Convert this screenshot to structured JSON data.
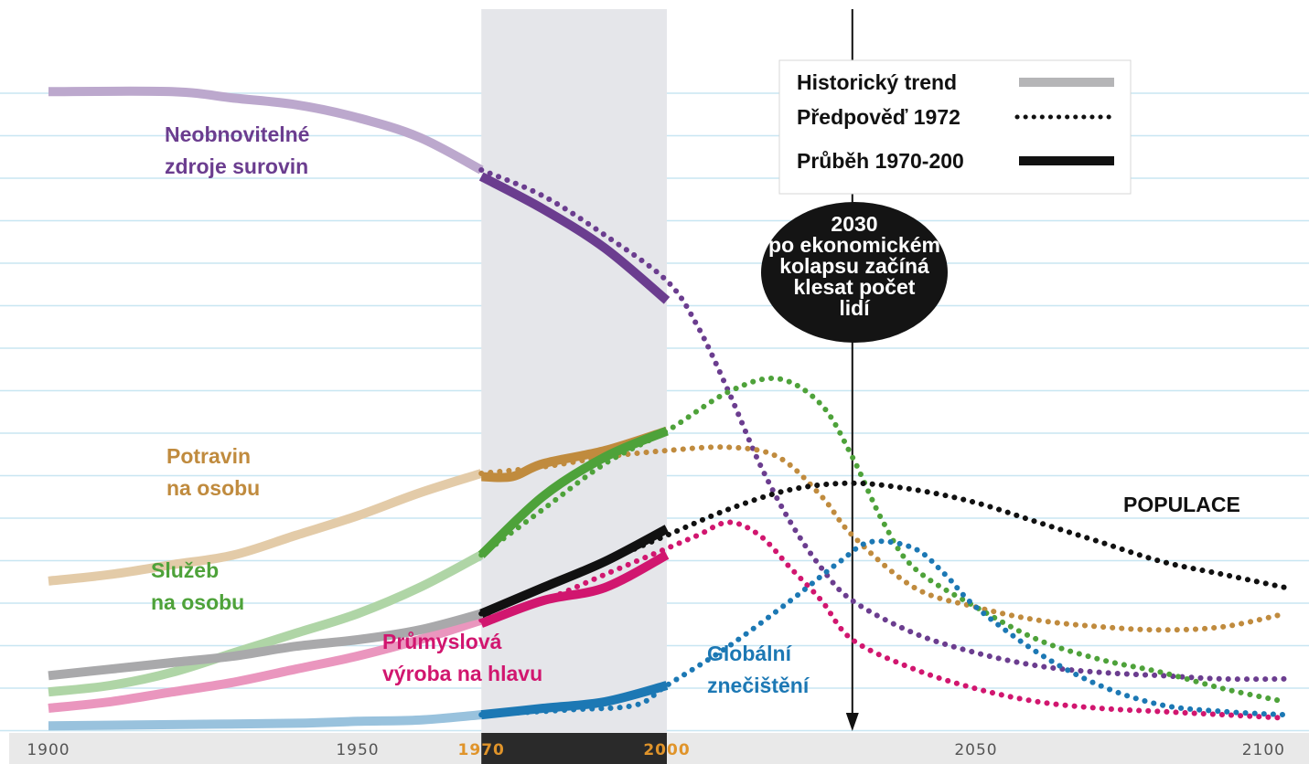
{
  "chart_data": {
    "type": "line",
    "title": "",
    "xlabel": "",
    "ylabel": "",
    "xlim": [
      1900,
      2100
    ],
    "x_ticks": [
      "1900",
      "1950",
      "1970",
      "2000",
      "2050",
      "2100"
    ],
    "highlight_range": [
      1970,
      2000
    ],
    "marker": {
      "year": 2030,
      "text": [
        "2030",
        "po ekonomickém",
        "kolapsu začíná",
        "klesat počet",
        "lidí"
      ]
    },
    "legend": {
      "position": "top-right",
      "items": [
        {
          "label": "Historický trend",
          "style": "historical"
        },
        {
          "label": "Předpověď 1972",
          "style": "dotted"
        },
        {
          "label": "Průběh 1970-200",
          "style": "solid"
        }
      ]
    },
    "colors": {
      "resources": "#6b3d8f",
      "food": "#c08b3e",
      "services": "#4ea23a",
      "industry": "#d1166f",
      "pollution": "#1c78b4",
      "population": "#111111",
      "gridline": "#c8e6f2",
      "highlight": "#e5e6ea",
      "axis_bar": "#2a2a2a",
      "axis_highlight_text": "#e0942a"
    },
    "series": [
      {
        "name": "Neobnovitelné zdroje surovin",
        "label_lines": [
          "Neobnovitelné",
          "zdroje surovin"
        ],
        "color_key": "resources",
        "historical": [
          [
            1900,
            0.98
          ],
          [
            1920,
            0.98
          ],
          [
            1930,
            0.97
          ],
          [
            1940,
            0.96
          ],
          [
            1950,
            0.94
          ],
          [
            1960,
            0.91
          ],
          [
            1970,
            0.86
          ]
        ],
        "forecast": [
          [
            1970,
            0.86
          ],
          [
            1980,
            0.82
          ],
          [
            1990,
            0.76
          ],
          [
            2000,
            0.69
          ],
          [
            2005,
            0.62
          ],
          [
            2010,
            0.52
          ],
          [
            2015,
            0.41
          ],
          [
            2020,
            0.32
          ],
          [
            2025,
            0.25
          ],
          [
            2030,
            0.2
          ],
          [
            2040,
            0.15
          ],
          [
            2050,
            0.12
          ],
          [
            2060,
            0.1
          ],
          [
            2070,
            0.09
          ],
          [
            2080,
            0.085
          ],
          [
            2090,
            0.08
          ],
          [
            2100,
            0.08
          ]
        ],
        "actual": [
          [
            1970,
            0.85
          ],
          [
            1980,
            0.8
          ],
          [
            1990,
            0.74
          ],
          [
            2000,
            0.66
          ]
        ]
      },
      {
        "name": "Potravin na osobu",
        "label_lines": [
          "Potravin",
          "na osobu"
        ],
        "color_key": "food",
        "historical": [
          [
            1900,
            0.23
          ],
          [
            1910,
            0.24
          ],
          [
            1920,
            0.255
          ],
          [
            1930,
            0.27
          ],
          [
            1940,
            0.3
          ],
          [
            1950,
            0.33
          ],
          [
            1960,
            0.365
          ],
          [
            1970,
            0.395
          ]
        ],
        "forecast": [
          [
            1970,
            0.395
          ],
          [
            1980,
            0.405
          ],
          [
            1990,
            0.42
          ],
          [
            2000,
            0.43
          ],
          [
            2010,
            0.435
          ],
          [
            2018,
            0.42
          ],
          [
            2025,
            0.36
          ],
          [
            2030,
            0.3
          ],
          [
            2040,
            0.22
          ],
          [
            2050,
            0.19
          ],
          [
            2060,
            0.17
          ],
          [
            2070,
            0.16
          ],
          [
            2080,
            0.155
          ],
          [
            2090,
            0.16
          ],
          [
            2100,
            0.18
          ]
        ],
        "actual": [
          [
            1970,
            0.39
          ],
          [
            1975,
            0.39
          ],
          [
            1980,
            0.41
          ],
          [
            1990,
            0.43
          ],
          [
            2000,
            0.46
          ]
        ]
      },
      {
        "name": "Služeb na osobu",
        "label_lines": [
          "Služeb",
          "na osobu"
        ],
        "color_key": "services",
        "historical": [
          [
            1900,
            0.06
          ],
          [
            1910,
            0.07
          ],
          [
            1920,
            0.09
          ],
          [
            1930,
            0.12
          ],
          [
            1940,
            0.15
          ],
          [
            1950,
            0.18
          ],
          [
            1960,
            0.22
          ],
          [
            1970,
            0.27
          ]
        ],
        "forecast": [
          [
            1970,
            0.27
          ],
          [
            1980,
            0.34
          ],
          [
            1990,
            0.41
          ],
          [
            2000,
            0.46
          ],
          [
            2010,
            0.52
          ],
          [
            2018,
            0.54
          ],
          [
            2025,
            0.5
          ],
          [
            2030,
            0.42
          ],
          [
            2035,
            0.32
          ],
          [
            2040,
            0.25
          ],
          [
            2050,
            0.19
          ],
          [
            2060,
            0.14
          ],
          [
            2070,
            0.11
          ],
          [
            2080,
            0.09
          ],
          [
            2090,
            0.065
          ],
          [
            2100,
            0.045
          ]
        ],
        "actual": [
          [
            1970,
            0.27
          ],
          [
            1980,
            0.36
          ],
          [
            1990,
            0.42
          ],
          [
            2000,
            0.46
          ]
        ]
      },
      {
        "name": "Průmyslová výroba na hlavu",
        "label_lines": [
          "Průmyslová",
          "výroba na hlavu"
        ],
        "color_key": "industry",
        "historical": [
          [
            1900,
            0.035
          ],
          [
            1910,
            0.045
          ],
          [
            1920,
            0.06
          ],
          [
            1930,
            0.075
          ],
          [
            1940,
            0.095
          ],
          [
            1950,
            0.115
          ],
          [
            1960,
            0.14
          ],
          [
            1970,
            0.17
          ]
        ],
        "forecast": [
          [
            1970,
            0.17
          ],
          [
            1980,
            0.2
          ],
          [
            1990,
            0.24
          ],
          [
            2000,
            0.28
          ],
          [
            2005,
            0.3
          ],
          [
            2010,
            0.32
          ],
          [
            2015,
            0.3
          ],
          [
            2020,
            0.25
          ],
          [
            2025,
            0.2
          ],
          [
            2030,
            0.14
          ],
          [
            2040,
            0.095
          ],
          [
            2050,
            0.065
          ],
          [
            2060,
            0.045
          ],
          [
            2070,
            0.035
          ],
          [
            2080,
            0.03
          ],
          [
            2090,
            0.025
          ],
          [
            2100,
            0.02
          ]
        ],
        "actual": [
          [
            1970,
            0.165
          ],
          [
            1980,
            0.2
          ],
          [
            1990,
            0.22
          ],
          [
            2000,
            0.27
          ]
        ]
      },
      {
        "name": "Globální znečištění",
        "label_lines": [
          "Globální",
          "znečištění"
        ],
        "color_key": "pollution",
        "historical": [
          [
            1900,
            0.008
          ],
          [
            1920,
            0.01
          ],
          [
            1940,
            0.012
          ],
          [
            1950,
            0.015
          ],
          [
            1960,
            0.017
          ],
          [
            1970,
            0.025
          ]
        ],
        "forecast": [
          [
            1970,
            0.025
          ],
          [
            1985,
            0.033
          ],
          [
            1995,
            0.04
          ],
          [
            2000,
            0.07
          ],
          [
            2010,
            0.13
          ],
          [
            2020,
            0.2
          ],
          [
            2028,
            0.26
          ],
          [
            2033,
            0.29
          ],
          [
            2040,
            0.28
          ],
          [
            2045,
            0.24
          ],
          [
            2050,
            0.19
          ],
          [
            2060,
            0.12
          ],
          [
            2070,
            0.07
          ],
          [
            2080,
            0.04
          ],
          [
            2090,
            0.03
          ],
          [
            2100,
            0.025
          ]
        ],
        "actual": [
          [
            1970,
            0.025
          ],
          [
            1980,
            0.035
          ],
          [
            1990,
            0.045
          ],
          [
            2000,
            0.07
          ]
        ]
      },
      {
        "name": "POPULACE",
        "label_lines": [
          "POPULACE"
        ],
        "color_key": "population",
        "historical": [
          [
            1900,
            0.085
          ],
          [
            1910,
            0.095
          ],
          [
            1920,
            0.105
          ],
          [
            1930,
            0.115
          ],
          [
            1940,
            0.13
          ],
          [
            1950,
            0.14
          ],
          [
            1960,
            0.155
          ],
          [
            1970,
            0.18
          ]
        ],
        "forecast": [
          [
            1970,
            0.18
          ],
          [
            1980,
            0.22
          ],
          [
            1990,
            0.26
          ],
          [
            2000,
            0.3
          ],
          [
            2010,
            0.34
          ],
          [
            2020,
            0.37
          ],
          [
            2030,
            0.38
          ],
          [
            2040,
            0.37
          ],
          [
            2050,
            0.35
          ],
          [
            2060,
            0.32
          ],
          [
            2070,
            0.29
          ],
          [
            2080,
            0.26
          ],
          [
            2090,
            0.24
          ],
          [
            2100,
            0.22
          ]
        ],
        "actual": [
          [
            1970,
            0.18
          ],
          [
            1980,
            0.22
          ],
          [
            1990,
            0.26
          ],
          [
            2000,
            0.31
          ]
        ]
      }
    ]
  }
}
